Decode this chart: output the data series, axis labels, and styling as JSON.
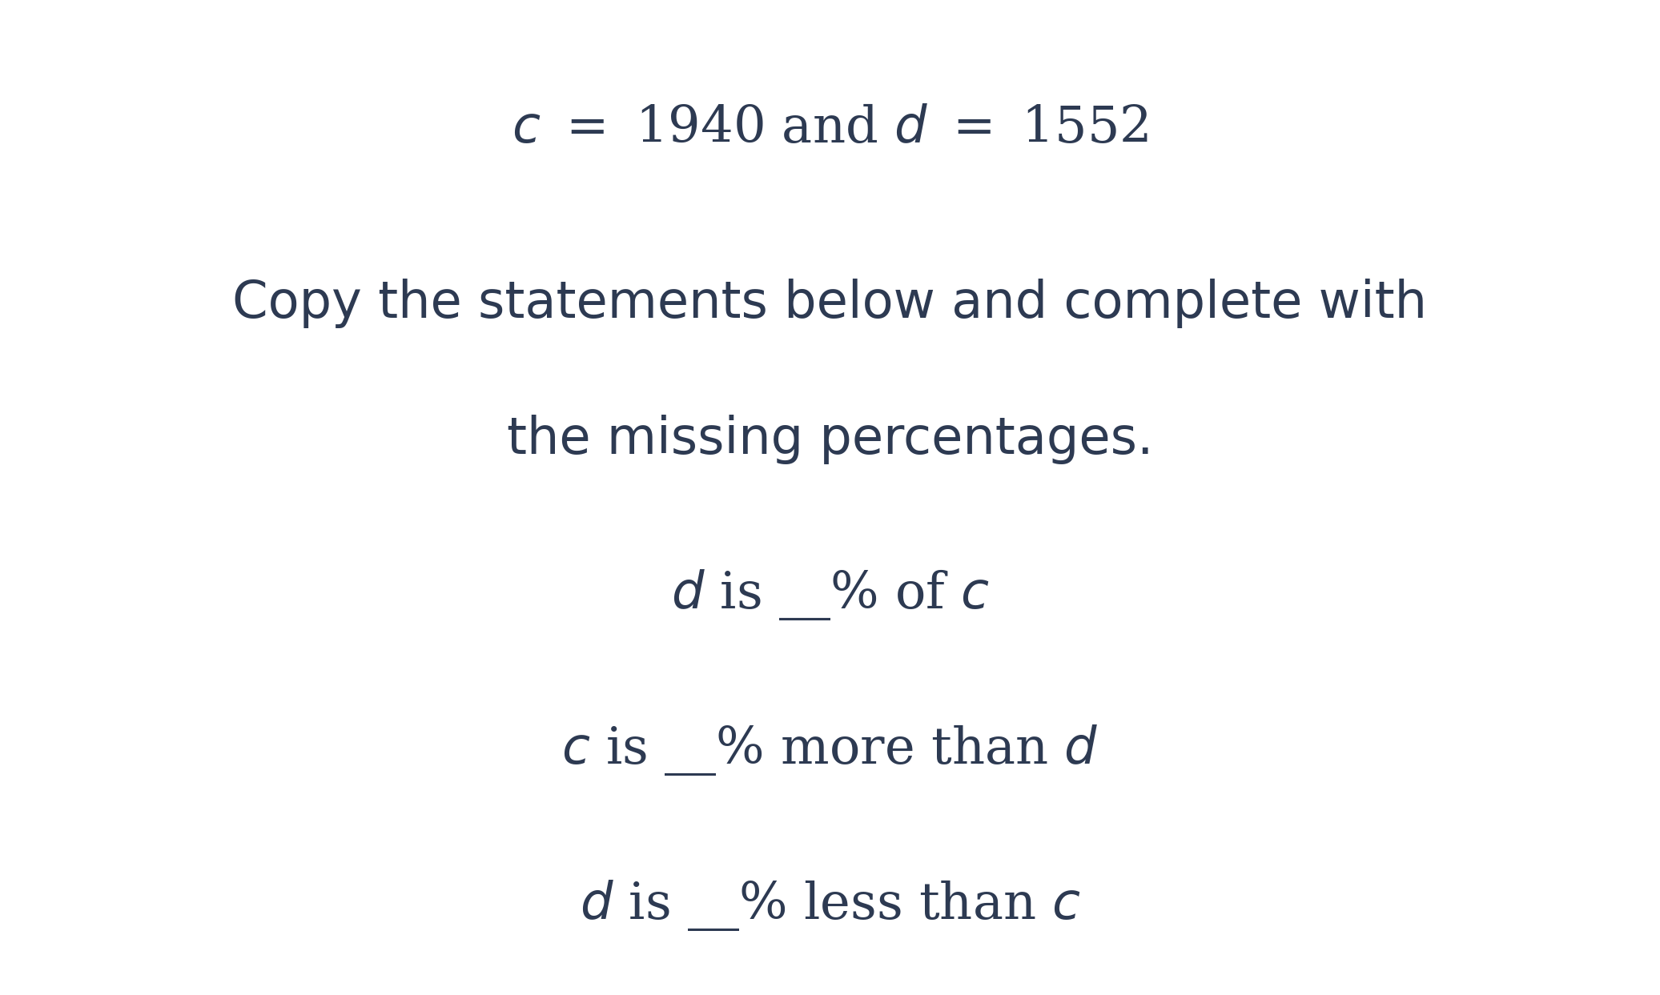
{
  "background_color": "#ffffff",
  "text_color": "#2d3a52",
  "fig_width": 20.73,
  "fig_height": 12.43,
  "line1": "c = 1940 and d = 1552",
  "line2_part1": "Copy the statements below and complete with",
  "line2_part2": "the missing percentages.",
  "line3": "d is —% of c",
  "line4": "c is —% more than d",
  "line5": "d is —% less than c",
  "title_fontsize": 46,
  "body_fontsize": 46,
  "statement_fontsize": 46
}
